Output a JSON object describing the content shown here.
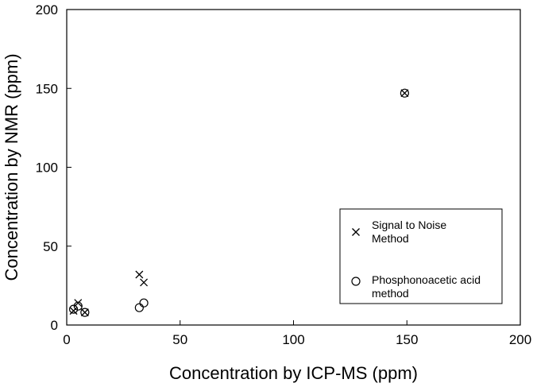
{
  "chart_data": {
    "type": "scatter",
    "xlabel": "Concentration by ICP-MS (ppm)",
    "ylabel": "Concentration by NMR (ppm)",
    "xlim": [
      0,
      200
    ],
    "ylim": [
      0,
      200
    ],
    "xticks": [
      0,
      50,
      100,
      150,
      200
    ],
    "yticks": [
      0,
      50,
      100,
      150,
      200
    ],
    "grid": false,
    "legend_position": "bottom-right",
    "series": [
      {
        "name": "Signal to Noise Method",
        "legend_lines": [
          "Signal to Noise",
          "Method"
        ],
        "marker": "x",
        "points": [
          {
            "x": 3,
            "y": 9
          },
          {
            "x": 5,
            "y": 14
          },
          {
            "x": 8,
            "y": 8
          },
          {
            "x": 32,
            "y": 32
          },
          {
            "x": 34,
            "y": 27
          },
          {
            "x": 149,
            "y": 147
          }
        ]
      },
      {
        "name": "Phosphonoacetic acid method",
        "legend_lines": [
          "Phosphonoacetic acid",
          "method"
        ],
        "marker": "circle",
        "points": [
          {
            "x": 3,
            "y": 10
          },
          {
            "x": 5,
            "y": 12
          },
          {
            "x": 8,
            "y": 8
          },
          {
            "x": 32,
            "y": 11
          },
          {
            "x": 34,
            "y": 14
          },
          {
            "x": 149,
            "y": 147
          }
        ]
      }
    ]
  }
}
